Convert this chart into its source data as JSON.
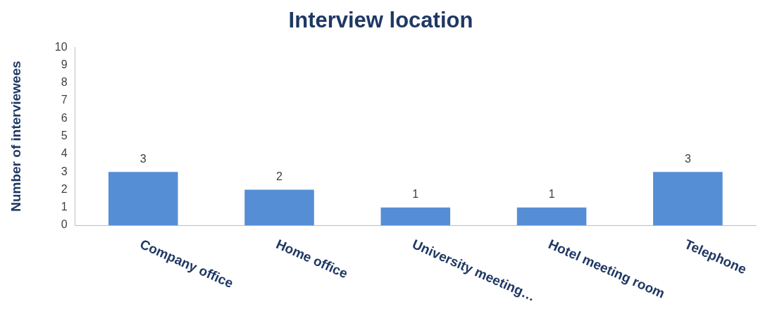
{
  "chart_data": {
    "type": "bar",
    "title": "Interview location",
    "ylabel": "Number of interviewees",
    "categories": [
      "Company office",
      "Home office",
      "University meeting…",
      "Hotel meeting room",
      "Telephone"
    ],
    "values": [
      3,
      2,
      1,
      1,
      3
    ],
    "color": "#558ed5",
    "ylim": [
      0,
      10
    ],
    "yticks": [
      0,
      1,
      2,
      3,
      4,
      5,
      6,
      7,
      8,
      9,
      10
    ],
    "grid": false,
    "legend": false,
    "data_labels": true
  }
}
